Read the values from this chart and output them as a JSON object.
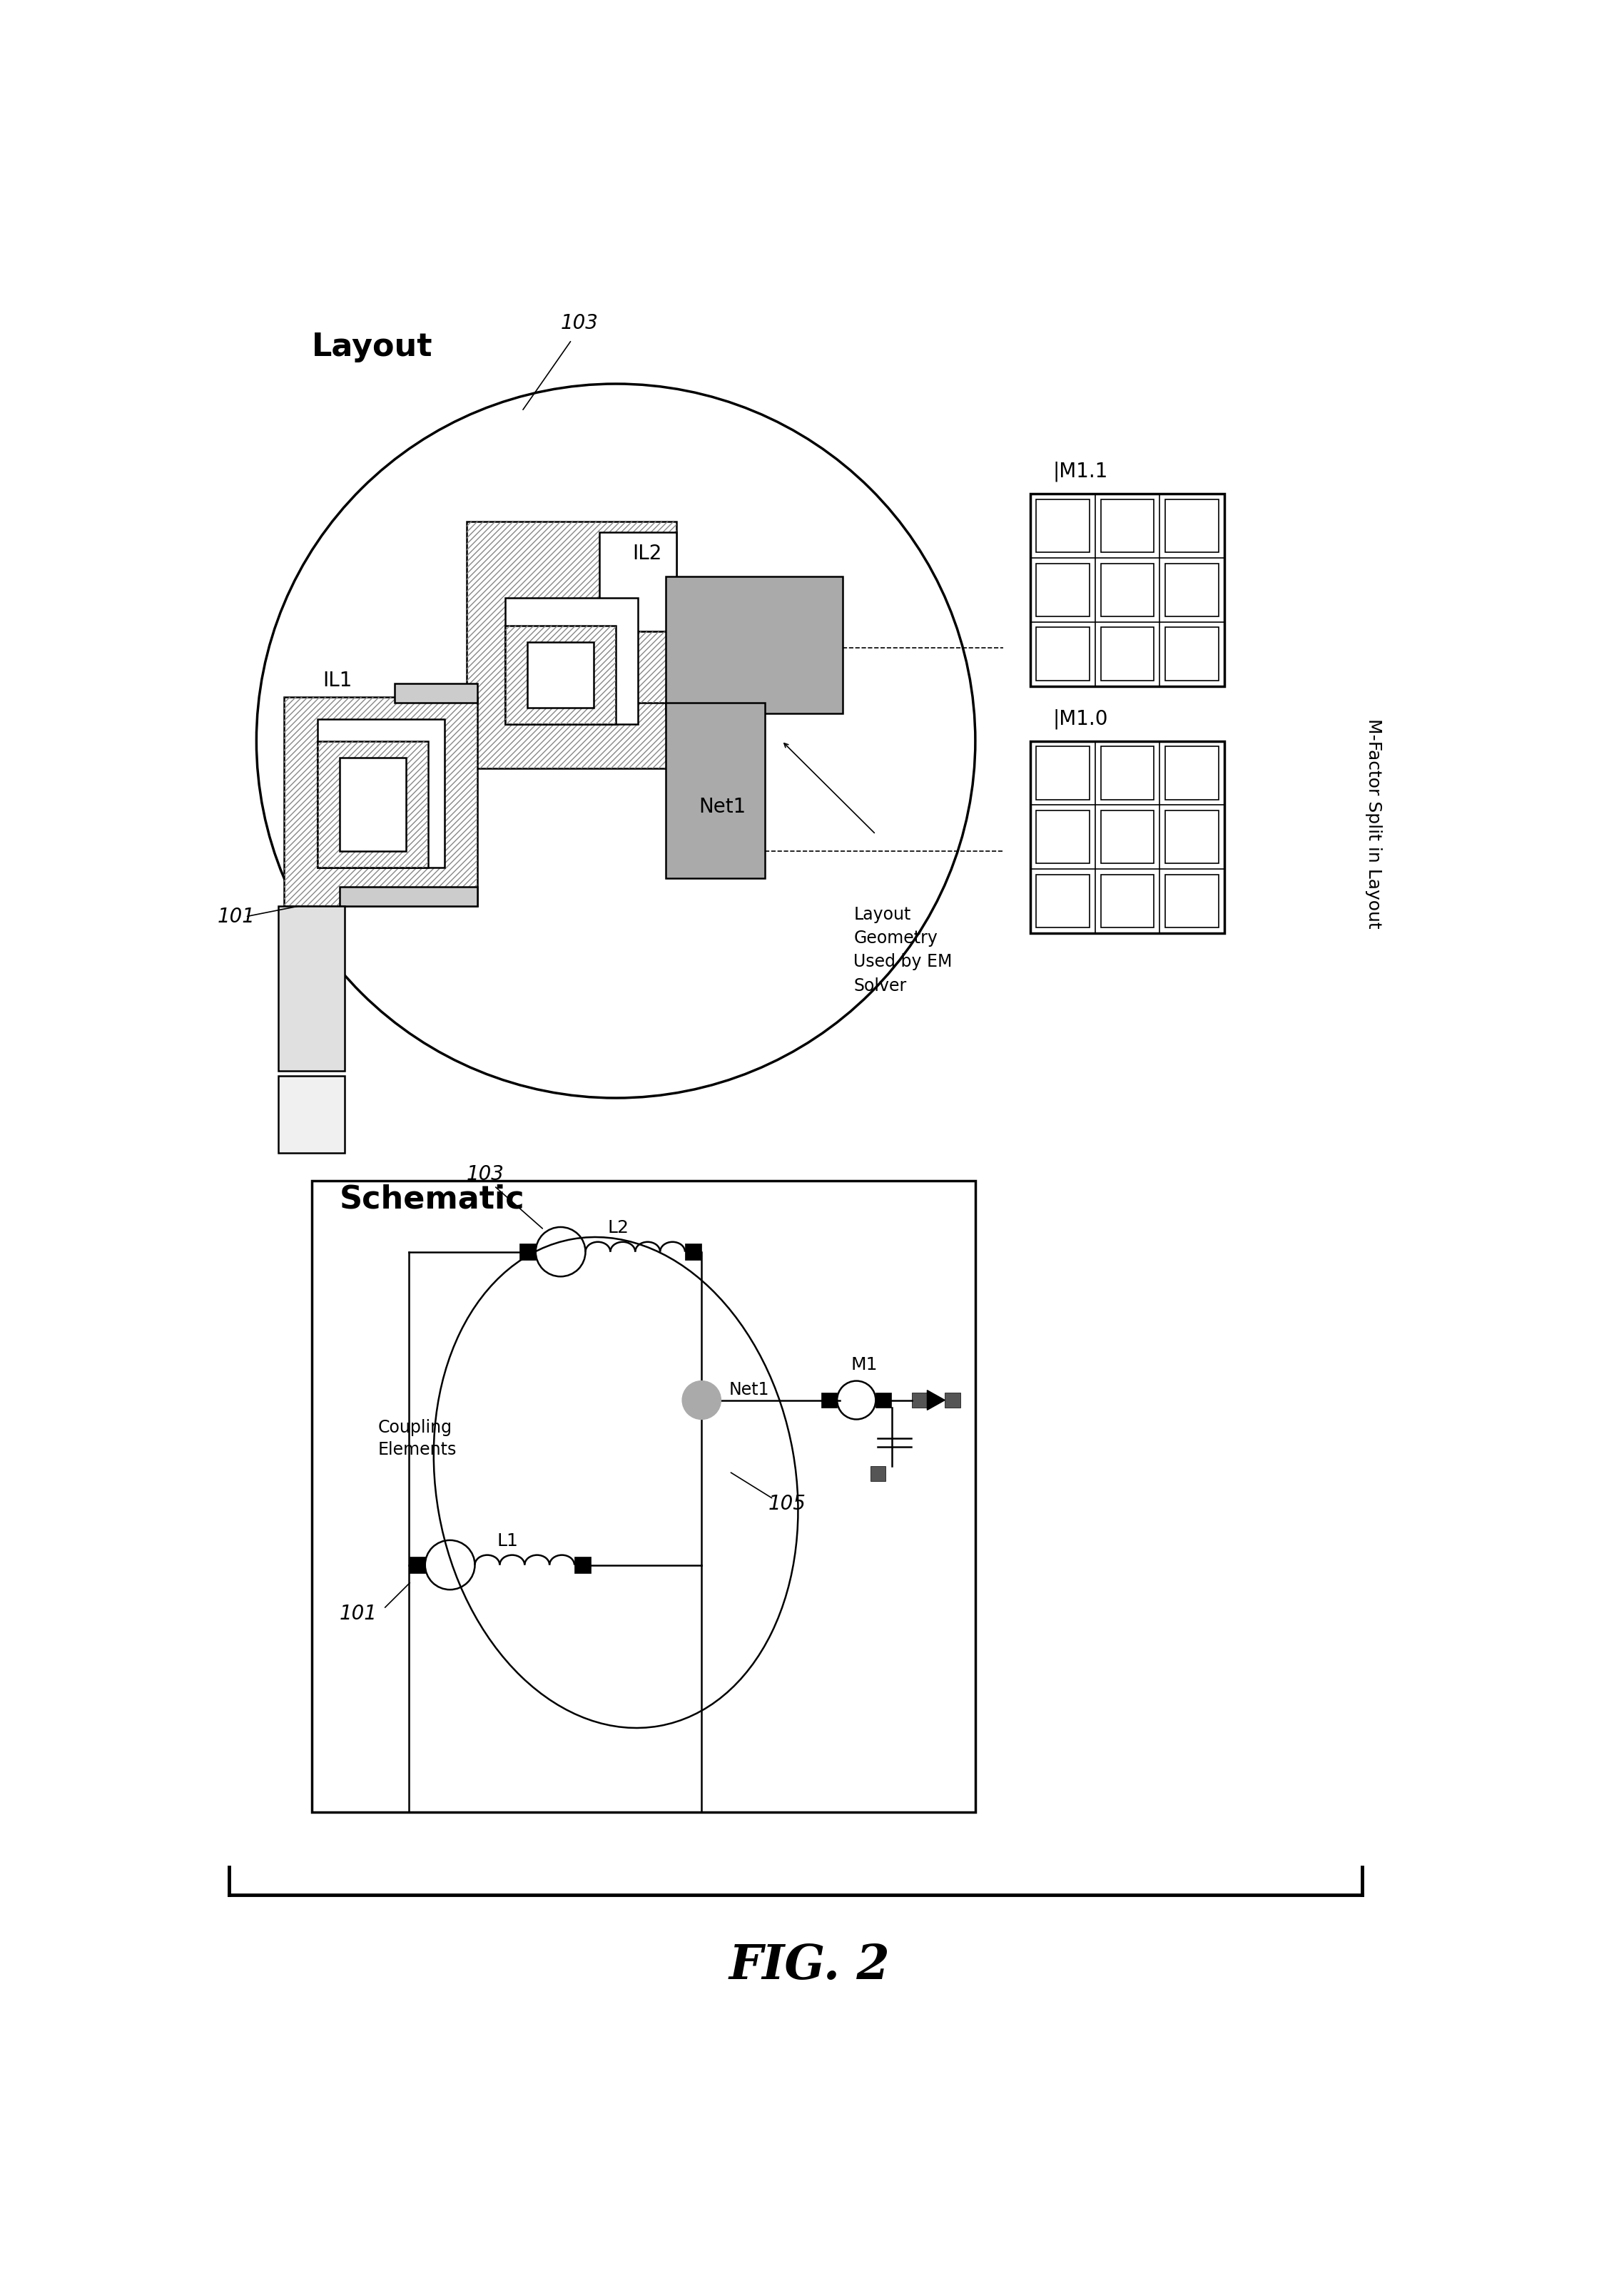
{
  "title": "FIG. 2",
  "background_color": "#ffffff",
  "fig_width": 22.55,
  "fig_height": 32.0,
  "layout_label": "Layout",
  "schematic_label": "Schematic",
  "mfactor_label": "M-Factor Split in Layout",
  "ref_103_layout": "103",
  "ref_101_layout": "101",
  "ref_103_schem": "103",
  "ref_101_schem": "101",
  "ref_105": "105",
  "net1_label": "Net1",
  "net1_schem_label": "Net1",
  "l1_label": "L1",
  "l2_label": "L2",
  "il1_label": "IL1",
  "il2_label": "IL2",
  "m1_label": "M1",
  "m10_label": "|M1.0",
  "m11_label": "|M1.1",
  "coupling_label": "Coupling\nElements",
  "layout_geometry_label": "Layout\nGeometry\nUsed by EM\nSolver"
}
